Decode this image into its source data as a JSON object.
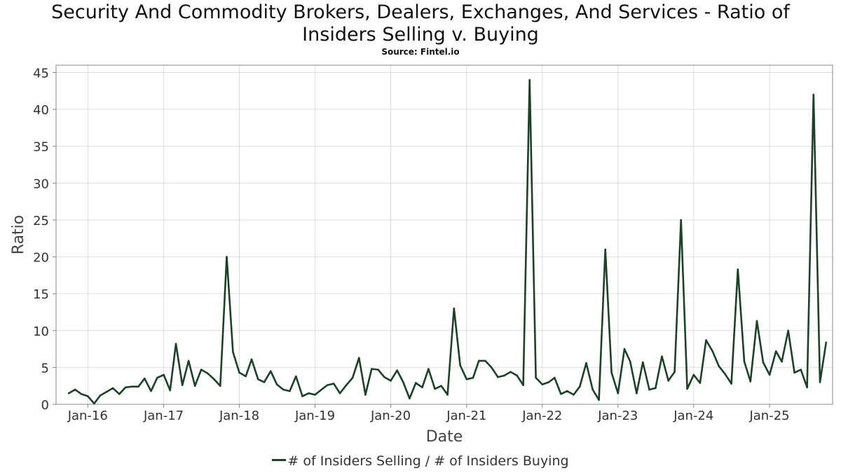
{
  "title_line1": "Security And Commodity Brokers, Dealers, Exchanges, And Services - Ratio of",
  "title_line2": "Insiders Selling v. Buying",
  "subtitle": "Source: Fintel.io",
  "chart_data": {
    "type": "line",
    "title": "Security And Commodity Brokers, Dealers, Exchanges, And Services - Ratio of Insiders Selling v. Buying",
    "xlabel": "Date",
    "ylabel": "Ratio",
    "ylim": [
      0,
      46
    ],
    "yticks": [
      0,
      5,
      10,
      15,
      20,
      25,
      30,
      35,
      40,
      45
    ],
    "xlim": [
      "2015-08-01",
      "2025-11-01"
    ],
    "xticks": [
      {
        "date": "2016-01-01",
        "label": "Jan-16"
      },
      {
        "date": "2017-01-01",
        "label": "Jan-17"
      },
      {
        "date": "2018-01-01",
        "label": "Jan-18"
      },
      {
        "date": "2019-01-01",
        "label": "Jan-19"
      },
      {
        "date": "2020-01-01",
        "label": "Jan-20"
      },
      {
        "date": "2021-01-01",
        "label": "Jan-21"
      },
      {
        "date": "2022-01-01",
        "label": "Jan-22"
      },
      {
        "date": "2023-01-01",
        "label": "Jan-23"
      },
      {
        "date": "2024-01-01",
        "label": "Jan-24"
      },
      {
        "date": "2025-01-01",
        "label": "Jan-25"
      }
    ],
    "grid": true,
    "legend_position": "bottom",
    "color": "#1b4226",
    "series": [
      {
        "name": "# of Insiders Selling / # of Insiders Buying",
        "x": [
          "2015-10-01",
          "2015-11-01",
          "2015-12-01",
          "2016-01-01",
          "2016-02-01",
          "2016-03-01",
          "2016-04-01",
          "2016-05-01",
          "2016-06-01",
          "2016-07-01",
          "2016-08-01",
          "2016-09-01",
          "2016-10-01",
          "2016-11-01",
          "2016-12-01",
          "2017-01-01",
          "2017-02-01",
          "2017-03-01",
          "2017-04-01",
          "2017-05-01",
          "2017-06-01",
          "2017-07-01",
          "2017-08-01",
          "2017-09-01",
          "2017-10-01",
          "2017-11-01",
          "2017-12-01",
          "2018-01-01",
          "2018-02-01",
          "2018-03-01",
          "2018-04-01",
          "2018-05-01",
          "2018-06-01",
          "2018-07-01",
          "2018-08-01",
          "2018-09-01",
          "2018-10-01",
          "2018-11-01",
          "2018-12-01",
          "2019-01-01",
          "2019-02-01",
          "2019-03-01",
          "2019-04-01",
          "2019-05-01",
          "2019-06-01",
          "2019-07-01",
          "2019-08-01",
          "2019-09-01",
          "2019-10-01",
          "2019-11-01",
          "2019-12-01",
          "2020-01-01",
          "2020-02-01",
          "2020-03-01",
          "2020-04-01",
          "2020-05-01",
          "2020-06-01",
          "2020-07-01",
          "2020-08-01",
          "2020-09-01",
          "2020-10-01",
          "2020-11-01",
          "2020-12-01",
          "2021-01-01",
          "2021-02-01",
          "2021-03-01",
          "2021-04-01",
          "2021-05-01",
          "2021-06-01",
          "2021-07-01",
          "2021-08-01",
          "2021-09-01",
          "2021-10-01",
          "2021-11-01",
          "2021-12-01",
          "2022-01-01",
          "2022-02-01",
          "2022-03-01",
          "2022-04-01",
          "2022-05-01",
          "2022-06-01",
          "2022-07-01",
          "2022-08-01",
          "2022-09-01",
          "2022-10-01",
          "2022-11-01",
          "2022-12-01",
          "2023-01-01",
          "2023-02-01",
          "2023-03-01",
          "2023-04-01",
          "2023-05-01",
          "2023-06-01",
          "2023-07-01",
          "2023-08-01",
          "2023-09-01",
          "2023-10-01",
          "2023-11-01",
          "2023-12-01",
          "2024-01-01",
          "2024-02-01",
          "2024-03-01",
          "2024-04-01",
          "2024-05-01",
          "2024-06-01",
          "2024-07-01",
          "2024-08-01",
          "2024-09-01",
          "2024-10-01",
          "2024-11-01",
          "2024-12-01",
          "2025-01-01",
          "2025-02-01",
          "2025-03-01",
          "2025-04-01",
          "2025-05-01",
          "2025-06-01",
          "2025-07-01",
          "2025-08-01",
          "2025-09-01",
          "2025-10-01"
        ],
        "y": [
          1.5,
          2.0,
          1.4,
          1.1,
          0.1,
          1.2,
          1.7,
          2.2,
          1.4,
          2.3,
          2.4,
          2.4,
          3.5,
          1.8,
          3.6,
          4.0,
          1.9,
          8.2,
          2.6,
          5.9,
          2.5,
          4.7,
          4.2,
          3.4,
          2.5,
          20.0,
          7.1,
          4.3,
          3.8,
          6.1,
          3.4,
          3.0,
          4.5,
          2.7,
          2.0,
          1.8,
          3.8,
          1.1,
          1.5,
          1.3,
          2.0,
          2.6,
          2.8,
          1.5,
          2.6,
          3.6,
          6.3,
          1.3,
          4.8,
          4.7,
          3.7,
          3.2,
          4.6,
          3.0,
          0.8,
          2.9,
          2.3,
          4.8,
          2.1,
          2.5,
          1.3,
          13.0,
          5.3,
          3.4,
          3.6,
          5.9,
          5.9,
          5.0,
          3.7,
          3.9,
          4.4,
          3.9,
          2.6,
          44.0,
          3.6,
          2.7,
          3.0,
          3.6,
          1.4,
          1.8,
          1.3,
          2.4,
          5.6,
          2.0,
          0.6,
          21.0,
          4.3,
          1.5,
          7.5,
          5.8,
          1.5,
          5.7,
          2.0,
          2.2,
          6.5,
          3.2,
          4.4,
          25.0,
          2.1,
          4.0,
          2.9,
          8.7,
          7.2,
          5.2,
          4.1,
          2.8,
          18.3,
          5.8,
          3.1,
          11.3,
          5.7,
          4.0,
          7.2,
          5.8,
          10.0,
          4.3,
          4.7,
          2.3,
          42.0,
          3.0,
          8.4
        ]
      }
    ]
  }
}
